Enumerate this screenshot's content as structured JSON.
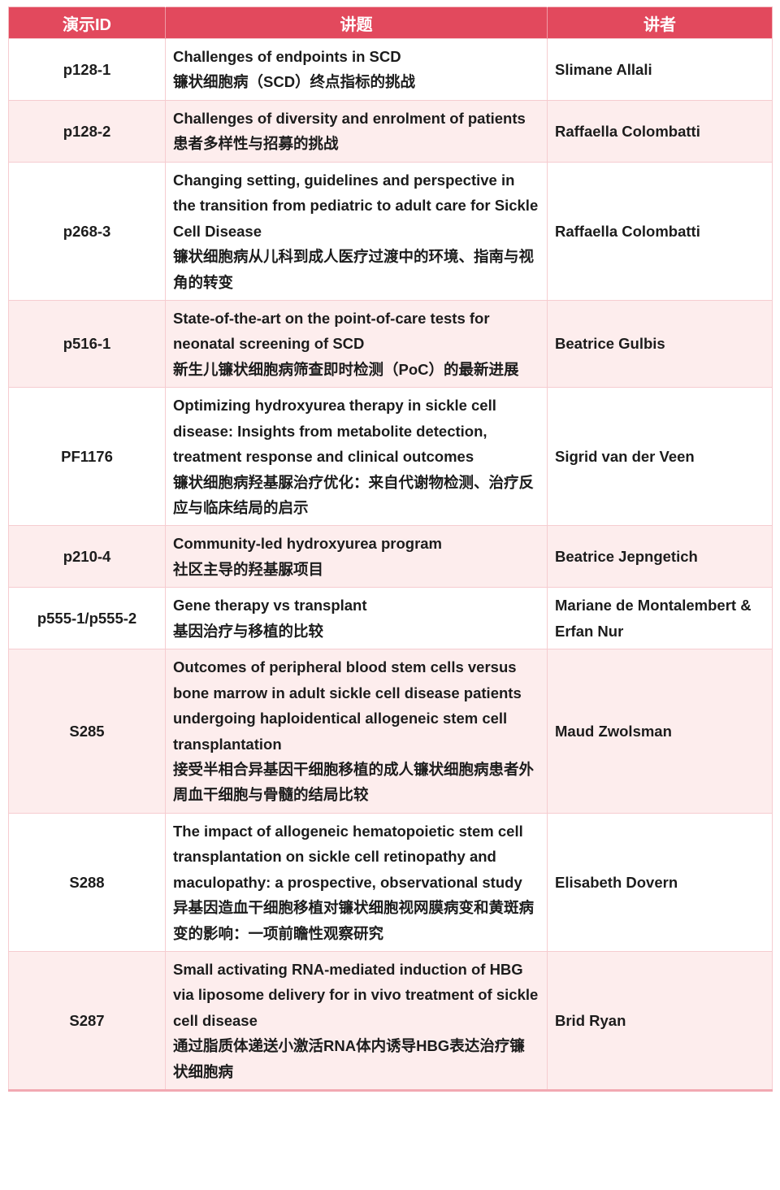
{
  "table": {
    "columns": [
      "演示ID",
      "讲题",
      "讲者"
    ],
    "rows": [
      {
        "id": "p128-1",
        "title_en": "Challenges of endpoints in SCD",
        "title_zh": "镰状细胞病（SCD）终点指标的挑战",
        "speaker": "Slimane Allali"
      },
      {
        "id": "p128-2",
        "title_en": "Challenges of diversity and enrolment of patients",
        "title_zh": "患者多样性与招募的挑战",
        "speaker": "Raffaella Colombatti"
      },
      {
        "id": "p268-3",
        "title_en": "Changing setting, guidelines and perspective in the transition from pediatric to adult care for Sickle Cell Disease",
        "title_zh": "镰状细胞病从儿科到成人医疗过渡中的环境、指南与视角的转变",
        "speaker": "Raffaella Colombatti"
      },
      {
        "id": "p516-1",
        "title_en": "State-of-the-art on the point-of-care tests for neonatal screening of SCD",
        "title_zh": "新生儿镰状细胞病筛查即时检测（PoC）的最新进展",
        "speaker": "Beatrice Gulbis"
      },
      {
        "id": "PF1176",
        "title_en": "Optimizing hydroxyurea therapy in sickle cell disease: Insights from metabolite detection, treatment response and clinical outcomes",
        "title_zh": "镰状细胞病羟基脲治疗优化：来自代谢物检测、治疗反应与临床结局的启示",
        "speaker": "Sigrid van der Veen"
      },
      {
        "id": "p210-4",
        "title_en": "Community-led hydroxyurea program",
        "title_zh": "社区主导的羟基脲项目",
        "speaker": "Beatrice Jepngetich"
      },
      {
        "id": "p555-1/p555-2",
        "title_en": "Gene therapy vs transplant",
        "title_zh": "基因治疗与移植的比较",
        "speaker": "Mariane de Montalembert & Erfan Nur"
      },
      {
        "id": "S285",
        "title_en": "Outcomes of peripheral blood stem cells versus bone marrow in adult sickle cell disease patients undergoing haploidentical allogeneic stem cell transplantation",
        "title_zh": "接受半相合异基因干细胞移植的成人镰状细胞病患者外周血干细胞与骨髓的结局比较",
        "speaker": "Maud Zwolsman"
      },
      {
        "id": "S288",
        "title_en": "The impact of allogeneic hematopoietic stem cell transplantation on sickle cell retinopathy and maculopathy: a prospective, observational study",
        "title_zh": "异基因造血干细胞移植对镰状细胞视网膜病变和黄斑病变的影响：一项前瞻性观察研究",
        "speaker": "Elisabeth Dovern"
      },
      {
        "id": "S287",
        "title_en": "Small activating RNA-mediated induction of HBG via liposome delivery for in vivo treatment of sickle cell disease",
        "title_zh": "通过脂质体递送小激活RNA体内诱导HBG表达治疗镰状细胞病",
        "speaker": "Brid Ryan"
      }
    ]
  },
  "colors": {
    "header_bg": "#e2495d",
    "header_text": "#ffffff",
    "stripe_bg": "#fdeded",
    "grid_border": "#f6ccd0",
    "body_text": "#1c1c1c"
  }
}
